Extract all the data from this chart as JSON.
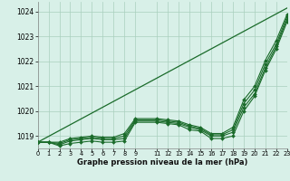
{
  "background_color": "#d8f0e8",
  "grid_color": "#aacfbe",
  "line_color": "#1a6b2a",
  "xlabel": "Graphe pression niveau de la mer (hPa)",
  "xlim": [
    0,
    23
  ],
  "ylim": [
    1018.5,
    1024.4
  ],
  "yticks": [
    1019,
    1020,
    1021,
    1022,
    1023,
    1024
  ],
  "xtick_pos": [
    0,
    1,
    2,
    3,
    4,
    5,
    6,
    7,
    8,
    9,
    11,
    12,
    13,
    14,
    15,
    16,
    17,
    18,
    19,
    20,
    21,
    22,
    23
  ],
  "xtick_labels": [
    "0",
    "1",
    "2",
    "3",
    "4",
    "5",
    "6",
    "7",
    "8",
    "9",
    "11",
    "12",
    "13",
    "14",
    "15",
    "16",
    "17",
    "18",
    "19",
    "20",
    "21",
    "22",
    "23"
  ],
  "series": [
    {
      "x": [
        0,
        1,
        2,
        3,
        4,
        5,
        6,
        7,
        8,
        9,
        11,
        12,
        13,
        14,
        15,
        16,
        17,
        18,
        19,
        20,
        21,
        22,
        23
      ],
      "y": [
        1018.75,
        1018.75,
        1018.6,
        1018.7,
        1018.75,
        1018.8,
        1018.75,
        1018.75,
        1018.8,
        1019.55,
        1019.55,
        1019.5,
        1019.45,
        1019.25,
        1019.2,
        1018.9,
        1018.9,
        1019.0,
        1020.0,
        1020.6,
        1021.65,
        1022.5,
        1023.6
      ],
      "marker": "D",
      "ms": 2.0,
      "lw": 0.8
    },
    {
      "x": [
        0,
        1,
        2,
        3,
        4,
        5,
        6,
        7,
        8,
        9,
        11,
        12,
        13,
        14,
        15,
        16,
        17,
        18,
        19,
        20,
        21,
        22,
        23
      ],
      "y": [
        1018.75,
        1018.75,
        1018.65,
        1018.8,
        1018.85,
        1018.9,
        1018.85,
        1018.85,
        1018.9,
        1019.6,
        1019.6,
        1019.55,
        1019.5,
        1019.35,
        1019.25,
        1019.0,
        1019.0,
        1019.15,
        1020.15,
        1020.7,
        1021.75,
        1022.6,
        1023.7
      ],
      "marker": "D",
      "ms": 2.0,
      "lw": 0.8
    },
    {
      "x": [
        0,
        1,
        2,
        3,
        4,
        5,
        6,
        7,
        8,
        9,
        11,
        12,
        13,
        14,
        15,
        16,
        17,
        18,
        19,
        20,
        21,
        22,
        23
      ],
      "y": [
        1018.75,
        1018.75,
        1018.7,
        1018.85,
        1018.9,
        1018.95,
        1018.9,
        1018.9,
        1019.0,
        1019.65,
        1019.65,
        1019.6,
        1019.55,
        1019.4,
        1019.3,
        1019.05,
        1019.05,
        1019.25,
        1020.3,
        1020.85,
        1021.9,
        1022.7,
        1023.8
      ],
      "marker": "D",
      "ms": 2.0,
      "lw": 0.8
    },
    {
      "x": [
        0,
        1,
        2,
        3,
        4,
        5,
        6,
        7,
        8,
        9,
        11,
        12,
        13,
        14,
        15,
        16,
        17,
        18,
        19,
        20,
        21,
        22,
        23
      ],
      "y": [
        1018.75,
        1018.75,
        1018.75,
        1018.9,
        1018.95,
        1019.0,
        1018.95,
        1018.95,
        1019.1,
        1019.7,
        1019.7,
        1019.65,
        1019.6,
        1019.45,
        1019.35,
        1019.1,
        1019.1,
        1019.35,
        1020.45,
        1021.0,
        1022.05,
        1022.85,
        1023.9
      ],
      "marker": "D",
      "ms": 2.0,
      "lw": 0.8
    },
    {
      "x": [
        0,
        23
      ],
      "y": [
        1018.75,
        1024.15
      ],
      "marker": null,
      "ms": 0,
      "lw": 0.9
    }
  ]
}
